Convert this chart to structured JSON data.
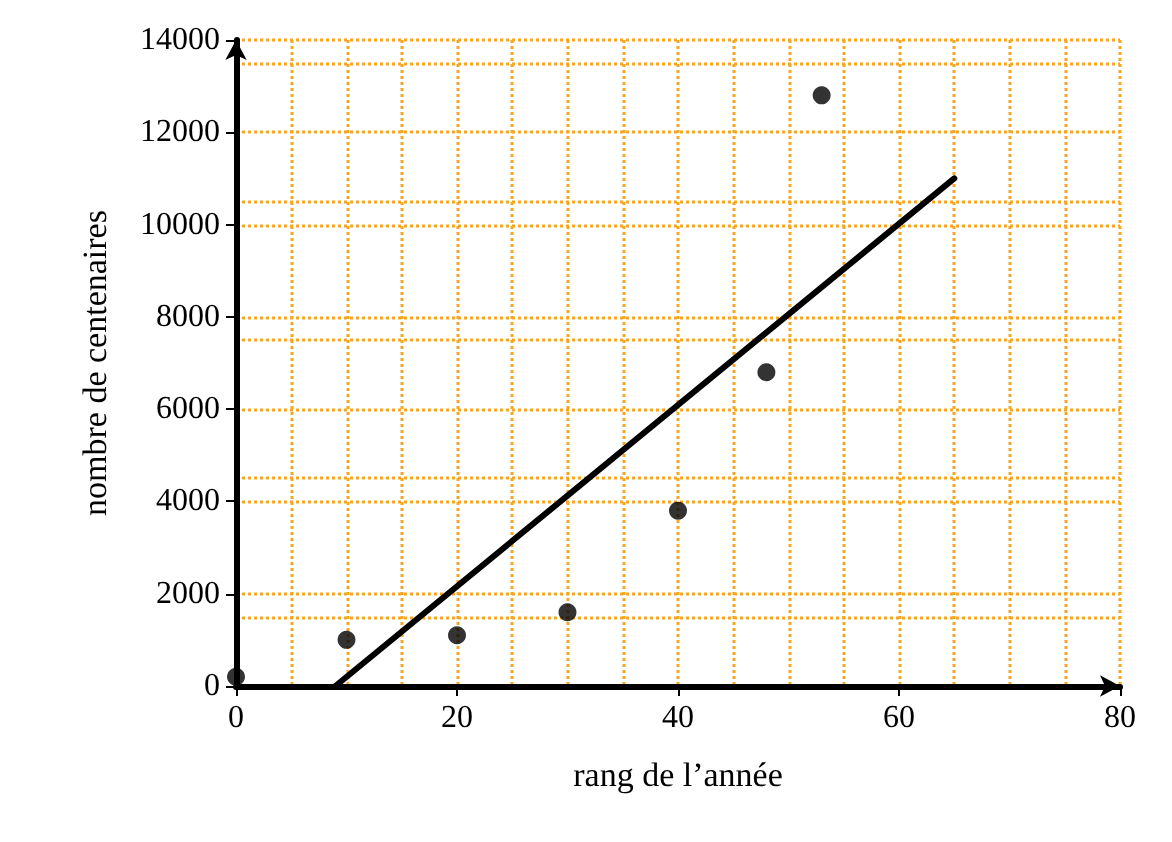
{
  "chart_data": {
    "type": "scatter",
    "xlabel": "rang de l’année",
    "ylabel": "nombre de centenaires",
    "xlim": [
      0,
      80
    ],
    "xticks": [
      0,
      20,
      40,
      60,
      80
    ],
    "ylim": [
      0,
      14000
    ],
    "yticks": [
      0,
      2000,
      4000,
      6000,
      8000,
      10000,
      12000,
      14000
    ],
    "grid": true,
    "marker": "circle",
    "series": [
      {
        "color": "#000000",
        "x": [
          0,
          10,
          20,
          30,
          40,
          48,
          53
        ],
        "values": [
          200,
          1000,
          1100,
          1600,
          3800,
          6800,
          12800
        ]
      },
      {
        "type": "line",
        "color": "#000000",
        "marker": "none",
        "line_style": "solid",
        "x": [
          9,
          65
        ],
        "values": [
          0,
          11000
        ]
      }
    ]
  }
}
